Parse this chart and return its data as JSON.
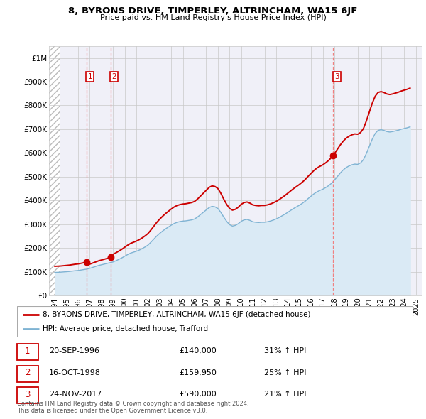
{
  "title": "8, BYRONS DRIVE, TIMPERLEY, ALTRINCHAM, WA15 6JF",
  "subtitle": "Price paid vs. HM Land Registry's House Price Index (HPI)",
  "ylim": [
    0,
    1050000
  ],
  "xlim": [
    1993.5,
    2025.5
  ],
  "ytick_labels": [
    "£0",
    "£100K",
    "£200K",
    "£300K",
    "£400K",
    "£500K",
    "£600K",
    "£700K",
    "£800K",
    "£900K",
    "£1M"
  ],
  "ytick_values": [
    0,
    100000,
    200000,
    300000,
    400000,
    500000,
    600000,
    700000,
    800000,
    900000,
    1000000
  ],
  "xtick_years": [
    1994,
    1995,
    1996,
    1997,
    1998,
    1999,
    2000,
    2001,
    2002,
    2003,
    2004,
    2005,
    2006,
    2007,
    2008,
    2009,
    2010,
    2011,
    2012,
    2013,
    2014,
    2015,
    2016,
    2017,
    2018,
    2019,
    2020,
    2021,
    2022,
    2023,
    2024,
    2025
  ],
  "sales": [
    {
      "label": "1",
      "date": "20-SEP-1996",
      "year": 1996.72,
      "price": 140000,
      "pct": "31%",
      "dir": "↑"
    },
    {
      "label": "2",
      "date": "16-OCT-1998",
      "year": 1998.79,
      "price": 159950,
      "pct": "25%",
      "dir": "↑"
    },
    {
      "label": "3",
      "date": "24-NOV-2017",
      "year": 2017.9,
      "price": 590000,
      "pct": "21%",
      "dir": "↑"
    }
  ],
  "red_line_color": "#cc0000",
  "blue_line_color": "#7fb3d3",
  "hpi_fill_color": "#daeaf5",
  "sale_marker_color": "#cc0000",
  "sale_label_border": "#cc0000",
  "dashed_line_color": "#f08080",
  "grid_color": "#c8c8c8",
  "hatch_color": "#bbbbbb",
  "background_color": "#ffffff",
  "chart_bg": "#f0f0f8",
  "legend_label_red": "8, BYRONS DRIVE, TIMPERLEY, ALTRINCHAM, WA15 6JF (detached house)",
  "legend_label_blue": "HPI: Average price, detached house, Trafford",
  "footnote": "Contains HM Land Registry data © Crown copyright and database right 2024.\nThis data is licensed under the Open Government Licence v3.0.",
  "hpi_data_years": [
    1994.0,
    1994.25,
    1994.5,
    1994.75,
    1995.0,
    1995.25,
    1995.5,
    1995.75,
    1996.0,
    1996.25,
    1996.5,
    1996.75,
    1997.0,
    1997.25,
    1997.5,
    1997.75,
    1998.0,
    1998.25,
    1998.5,
    1998.75,
    1999.0,
    1999.25,
    1999.5,
    1999.75,
    2000.0,
    2000.25,
    2000.5,
    2000.75,
    2001.0,
    2001.25,
    2001.5,
    2001.75,
    2002.0,
    2002.25,
    2002.5,
    2002.75,
    2003.0,
    2003.25,
    2003.5,
    2003.75,
    2004.0,
    2004.25,
    2004.5,
    2004.75,
    2005.0,
    2005.25,
    2005.5,
    2005.75,
    2006.0,
    2006.25,
    2006.5,
    2006.75,
    2007.0,
    2007.25,
    2007.5,
    2007.75,
    2008.0,
    2008.25,
    2008.5,
    2008.75,
    2009.0,
    2009.25,
    2009.5,
    2009.75,
    2010.0,
    2010.25,
    2010.5,
    2010.75,
    2011.0,
    2011.25,
    2011.5,
    2011.75,
    2012.0,
    2012.25,
    2012.5,
    2012.75,
    2013.0,
    2013.25,
    2013.5,
    2013.75,
    2014.0,
    2014.25,
    2014.5,
    2014.75,
    2015.0,
    2015.25,
    2015.5,
    2015.75,
    2016.0,
    2016.25,
    2016.5,
    2016.75,
    2017.0,
    2017.25,
    2017.5,
    2017.75,
    2018.0,
    2018.25,
    2018.5,
    2018.75,
    2019.0,
    2019.25,
    2019.5,
    2019.75,
    2020.0,
    2020.25,
    2020.5,
    2020.75,
    2021.0,
    2021.25,
    2021.5,
    2021.75,
    2022.0,
    2022.25,
    2022.5,
    2022.75,
    2023.0,
    2023.25,
    2023.5,
    2023.75,
    2024.0,
    2024.25,
    2024.5
  ],
  "hpi_values": [
    97000,
    97500,
    98000,
    99000,
    100000,
    101000,
    102500,
    104000,
    105000,
    107000,
    109000,
    111000,
    114000,
    118000,
    122000,
    126000,
    129000,
    132000,
    135000,
    138000,
    141000,
    146000,
    152000,
    158000,
    165000,
    172000,
    178000,
    182000,
    186000,
    191000,
    197000,
    204000,
    212000,
    224000,
    237000,
    250000,
    261000,
    271000,
    280000,
    288000,
    296000,
    303000,
    308000,
    311000,
    313000,
    314000,
    316000,
    318000,
    322000,
    330000,
    340000,
    350000,
    360000,
    370000,
    375000,
    373000,
    366000,
    350000,
    330000,
    312000,
    298000,
    292000,
    295000,
    302000,
    312000,
    318000,
    320000,
    316000,
    310000,
    308000,
    307000,
    308000,
    308000,
    310000,
    313000,
    317000,
    322000,
    328000,
    335000,
    342000,
    350000,
    358000,
    366000,
    373000,
    380000,
    388000,
    397000,
    408000,
    418000,
    428000,
    436000,
    442000,
    447000,
    454000,
    462000,
    472000,
    485000,
    500000,
    515000,
    528000,
    538000,
    545000,
    550000,
    553000,
    552000,
    558000,
    572000,
    598000,
    628000,
    658000,
    682000,
    695000,
    698000,
    695000,
    690000,
    688000,
    690000,
    693000,
    696000,
    700000,
    703000,
    706000,
    710000
  ]
}
